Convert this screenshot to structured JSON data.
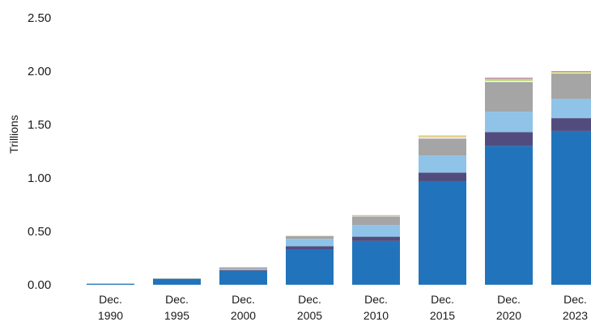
{
  "chart_data": {
    "type": "bar",
    "stacked": true,
    "title": "",
    "xlabel": "",
    "ylabel": "Trillions",
    "ylim": [
      0,
      2.5
    ],
    "yticks": [
      0,
      0.5,
      1.0,
      1.5,
      2.0,
      2.5
    ],
    "ytick_labels": [
      "0.00",
      "0.50",
      "1.00",
      "1.50",
      "2.00",
      "2.50"
    ],
    "categories": [
      "Dec. 1990",
      "Dec. 1995",
      "Dec. 2000",
      "Dec. 2005",
      "Dec. 2010",
      "Dec. 2015",
      "Dec. 2020",
      "Dec. 2023"
    ],
    "category_lines": [
      [
        "Dec.",
        "1990"
      ],
      [
        "Dec.",
        "1995"
      ],
      [
        "Dec.",
        "2000"
      ],
      [
        "Dec.",
        "2005"
      ],
      [
        "Dec.",
        "2010"
      ],
      [
        "Dec.",
        "2015"
      ],
      [
        "Dec.",
        "2020"
      ],
      [
        "Dec.",
        "2023"
      ]
    ],
    "grid": false,
    "legend": "none",
    "series": [
      {
        "color": "#2174bb",
        "values": [
          0.01,
          0.05,
          0.13,
          0.33,
          0.41,
          0.97,
          1.3,
          1.44
        ]
      },
      {
        "color": "#524c7e",
        "values": [
          0.0,
          0.003,
          0.008,
          0.03,
          0.04,
          0.08,
          0.13,
          0.12
        ]
      },
      {
        "color": "#8fc3e8",
        "values": [
          0.0,
          0.004,
          0.01,
          0.07,
          0.11,
          0.16,
          0.19,
          0.18
        ]
      },
      {
        "color": "#a5a5a5",
        "values": [
          0.0,
          0.003,
          0.015,
          0.025,
          0.08,
          0.16,
          0.28,
          0.24
        ]
      },
      {
        "color": "#ffffff",
        "values": [
          0.0,
          0.0,
          0.0,
          0.005,
          0.005,
          0.01,
          0.01,
          0.005
        ]
      },
      {
        "color": "#b4d56a",
        "values": [
          0.0,
          0.0,
          0.0,
          0.0,
          0.003,
          0.007,
          0.015,
          0.005
        ]
      },
      {
        "color": "#f5c88a",
        "values": [
          0.0,
          0.0,
          0.0,
          0.003,
          0.005,
          0.012,
          0.005,
          0.003
        ]
      },
      {
        "color": "#9a6fa3",
        "values": [
          0.0,
          0.0,
          0.0,
          0.0,
          0.0,
          0.0,
          0.008,
          0.006
        ]
      }
    ]
  }
}
